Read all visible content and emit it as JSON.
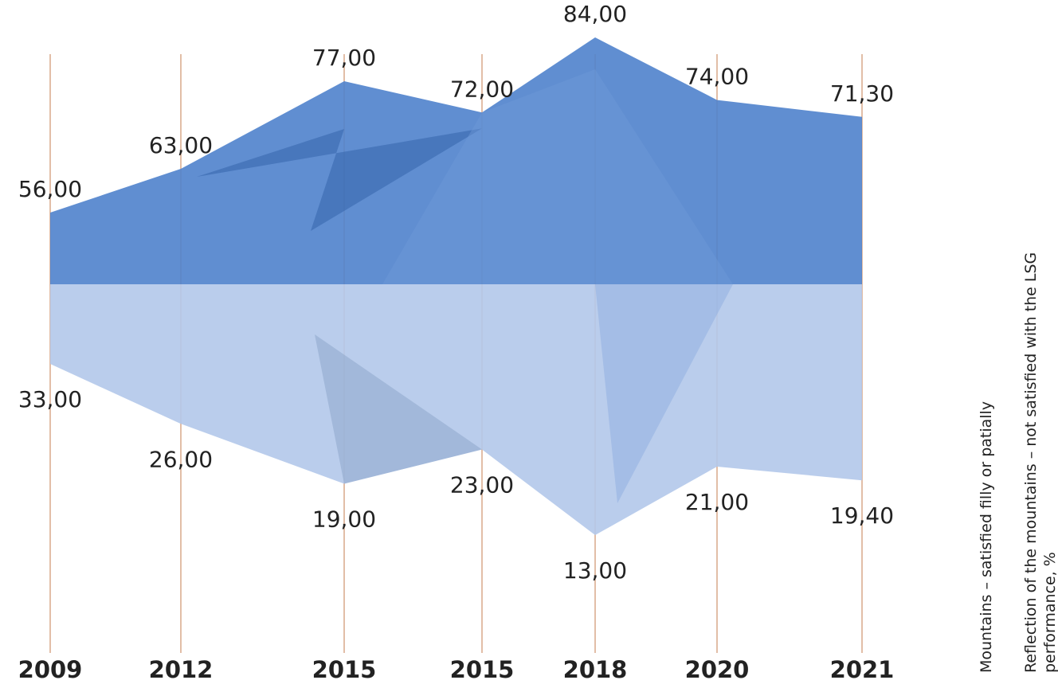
{
  "chart_data": {
    "type": "mirror-area",
    "categories": [
      "2009",
      "2012",
      "2015",
      "2015",
      "2018",
      "2020",
      "2021"
    ],
    "series": [
      {
        "name": "Mountains – satisfied filly or patially",
        "color": "#4f82cc",
        "values": [
          56,
          63,
          77,
          72,
          84,
          74,
          71.3
        ],
        "value_labels": [
          "56,00",
          "63,00",
          "77,00",
          "72,00",
          "84,00",
          "74,00",
          "71,30"
        ]
      },
      {
        "name": "Reflection of the mountains – not satisfied with the LSG performance, %",
        "color": "#b3c8ea",
        "values": [
          33,
          26,
          19,
          23,
          13,
          21,
          19.4
        ],
        "value_labels": [
          "33,00",
          "26,00",
          "19,00",
          "23,00",
          "13,00",
          "21,00",
          "19,40"
        ]
      }
    ]
  }
}
